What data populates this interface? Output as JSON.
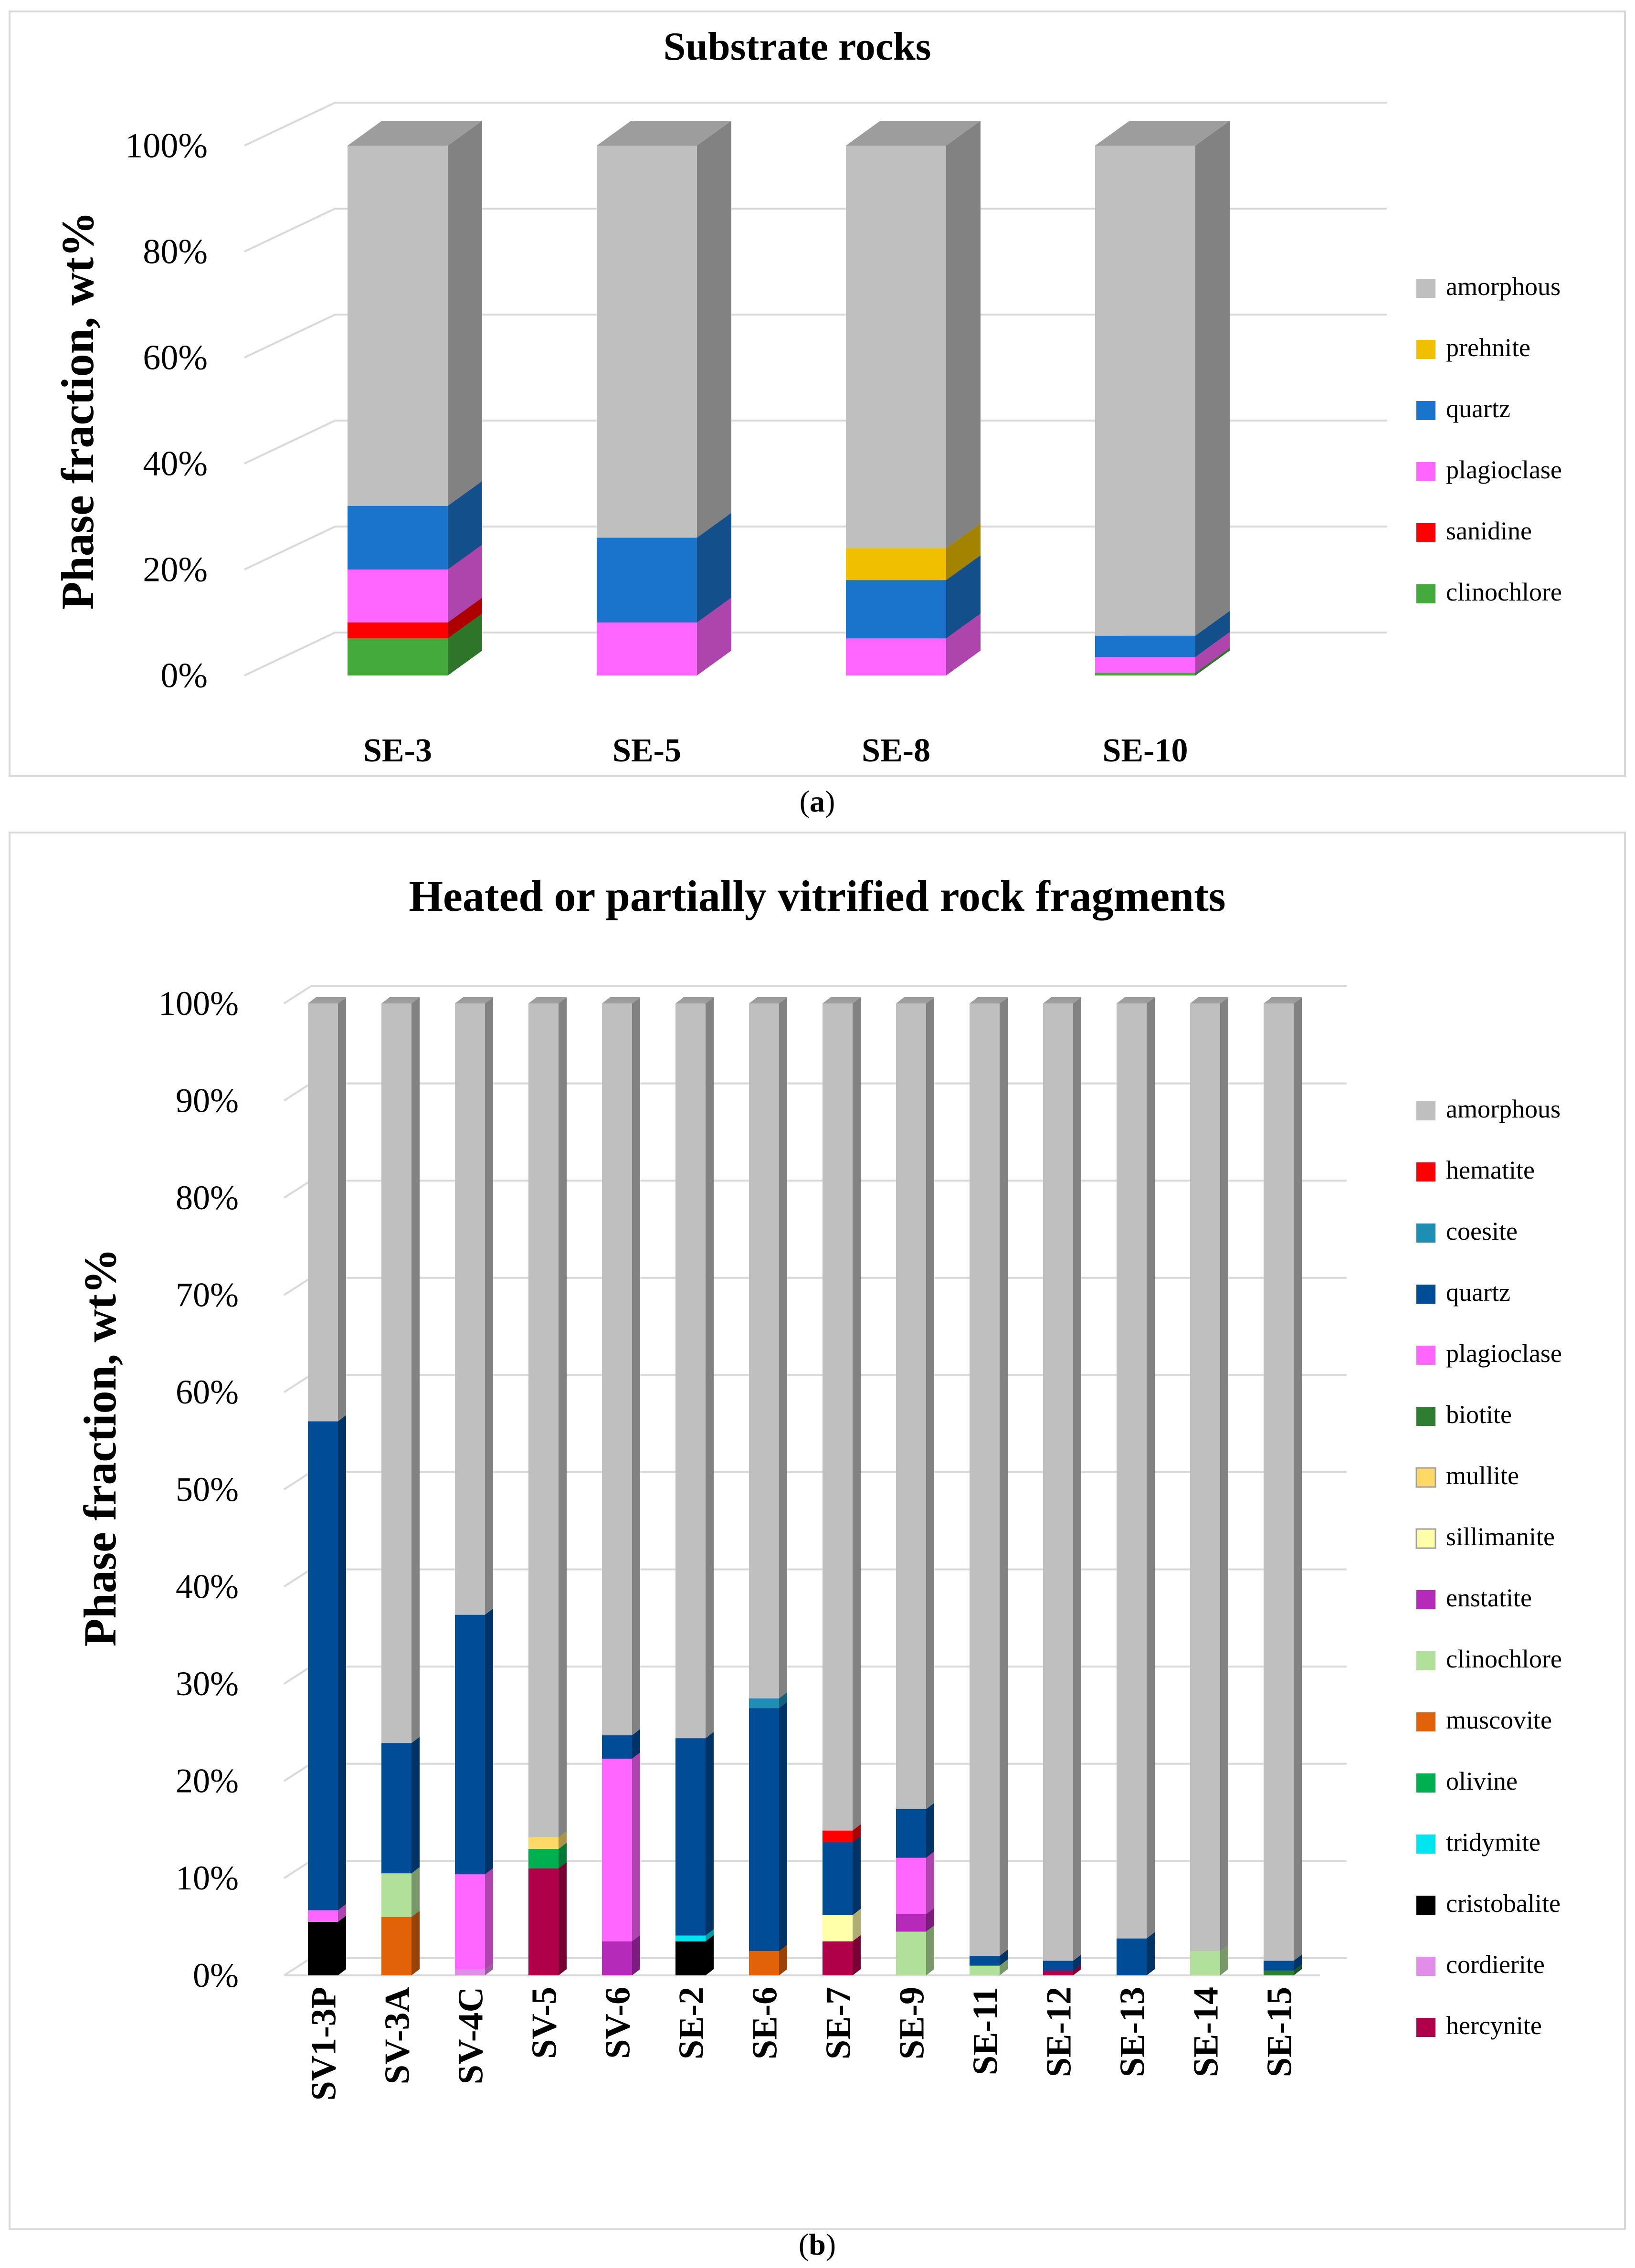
{
  "chart_data": [
    {
      "type": "bar",
      "stacked": true,
      "style": "3d-stacked-column-100",
      "title": "Substrate rocks",
      "ylabel": "Phase fraction, wt%",
      "xlabel": "",
      "ylim": [
        0,
        100
      ],
      "y_ticks": [
        0,
        20,
        40,
        60,
        80,
        100
      ],
      "y_tick_labels": [
        "0%",
        "20%",
        "40%",
        "60%",
        "80%",
        "100%"
      ],
      "categories": [
        "SE-3",
        "SE-5",
        "SE-8",
        "SE-10"
      ],
      "legend_position": "right",
      "caption": "(a)",
      "caption_letter": "a",
      "series": [
        {
          "name": "clinochlore",
          "color": "#44aa3c",
          "values": [
            7,
            0,
            0,
            0.5
          ]
        },
        {
          "name": "sanidine",
          "color": "#ff0000",
          "values": [
            3,
            0,
            0,
            0
          ]
        },
        {
          "name": "plagioclase",
          "color": "#ff66ff",
          "values": [
            10,
            10,
            7,
            3
          ]
        },
        {
          "name": "quartz",
          "color": "#1b74cc",
          "values": [
            12,
            16,
            11,
            4
          ]
        },
        {
          "name": "prehnite",
          "color": "#f0c000",
          "values": [
            0,
            0,
            6,
            0
          ]
        },
        {
          "name": "amorphous",
          "color": "#bfbfbf",
          "values": [
            68,
            74,
            76,
            92.5
          ]
        }
      ],
      "legend_order": [
        "amorphous",
        "prehnite",
        "quartz",
        "plagioclase",
        "sanidine",
        "clinochlore"
      ]
    },
    {
      "type": "bar",
      "stacked": true,
      "style": "3d-stacked-column-100",
      "title": "Heated or partially vitrified rock fragments",
      "ylabel": "Phase fraction, wt%",
      "xlabel": "",
      "ylim": [
        0,
        100
      ],
      "y_ticks": [
        0,
        10,
        20,
        30,
        40,
        50,
        60,
        70,
        80,
        90,
        100
      ],
      "y_tick_labels": [
        "0%",
        "10%",
        "20%",
        "30%",
        "40%",
        "50%",
        "60%",
        "70%",
        "80%",
        "90%",
        "100%"
      ],
      "categories": [
        "SV1-3P",
        "SV-3A",
        "SV-4C",
        "SV-5",
        "SV-6",
        "SE-2",
        "SE-6",
        "SE-7",
        "SE-9",
        "SE-11",
        "SE-12",
        "SE-13",
        "SE-14",
        "SE-15"
      ],
      "legend_position": "right",
      "caption": "(b)",
      "caption_letter": "b",
      "series": [
        {
          "name": "hercynite",
          "color": "#b0004a",
          "values": [
            0,
            0,
            0,
            11,
            0,
            0,
            0,
            3.5,
            0,
            0,
            0.5,
            0,
            0,
            0
          ]
        },
        {
          "name": "cordierite",
          "color": "#e08ee8",
          "values": [
            0,
            0,
            0.6,
            0,
            0,
            0,
            0,
            0,
            0,
            0,
            0,
            0,
            0,
            0
          ]
        },
        {
          "name": "cristobalite",
          "color": "#000000",
          "values": [
            5.5,
            0,
            0,
            0,
            0,
            3.5,
            0,
            0,
            0,
            0,
            0,
            0,
            0,
            0
          ]
        },
        {
          "name": "tridymite",
          "color": "#00e5f0",
          "values": [
            0,
            0,
            0,
            0,
            0,
            0.6,
            0,
            0,
            0,
            0,
            0,
            0,
            0,
            0
          ]
        },
        {
          "name": "olivine",
          "color": "#00b050",
          "values": [
            0,
            0,
            0,
            2,
            0,
            0,
            0,
            0,
            0,
            0,
            0,
            0,
            0,
            0
          ]
        },
        {
          "name": "muscovite",
          "color": "#e2620a",
          "values": [
            0,
            6,
            0,
            0,
            0,
            0,
            2.5,
            0,
            0,
            0,
            0,
            0,
            0,
            0
          ]
        },
        {
          "name": "clinochlore",
          "color": "#b0e09a",
          "values": [
            0,
            4.5,
            0,
            0,
            0,
            0,
            0,
            0,
            4.5,
            1,
            0,
            0,
            2.5,
            0
          ]
        },
        {
          "name": "enstatite",
          "color": "#b52ab8",
          "values": [
            0,
            0,
            0,
            0,
            3.5,
            0,
            0,
            0,
            1.8,
            0,
            0,
            0,
            0,
            0
          ]
        },
        {
          "name": "sillimanite",
          "color": "#ffffaa",
          "values": [
            0,
            0,
            0,
            0,
            0,
            0,
            0,
            2.7,
            0,
            0,
            0,
            0,
            0,
            0
          ]
        },
        {
          "name": "mullite",
          "color": "#ffd966",
          "values": [
            0,
            0,
            0,
            1.2,
            0,
            0,
            0,
            0,
            0,
            0,
            0,
            0,
            0,
            0
          ]
        },
        {
          "name": "biotite",
          "color": "#2e7d32",
          "values": [
            0,
            0,
            0,
            0,
            0,
            0,
            0,
            0,
            0,
            0,
            0,
            0,
            0,
            0.5
          ]
        },
        {
          "name": "plagioclase",
          "color": "#ff66ff",
          "values": [
            1.2,
            0,
            9.8,
            0,
            18.8,
            0,
            0,
            0,
            5.8,
            0,
            0,
            0,
            0,
            0
          ]
        },
        {
          "name": "quartz",
          "color": "#004c97",
          "values": [
            50.3,
            13.4,
            26.7,
            0,
            2.4,
            20.3,
            25,
            7.5,
            5,
            1,
            1,
            3.8,
            0,
            1
          ]
        },
        {
          "name": "coesite",
          "color": "#1f8eb5",
          "values": [
            0,
            0,
            0,
            0,
            0,
            0,
            1,
            0,
            0,
            0,
            0,
            0,
            0,
            0
          ]
        },
        {
          "name": "hematite",
          "color": "#ff0000",
          "values": [
            0,
            0,
            0,
            0,
            0,
            0,
            0,
            1.2,
            0,
            0,
            0,
            0,
            0,
            0
          ]
        },
        {
          "name": "amorphous",
          "color": "#bfbfbf",
          "values": [
            43,
            76.1,
            62.9,
            85.8,
            75.3,
            75.6,
            71.5,
            85.1,
            82.9,
            98,
            98.5,
            96.2,
            97.5,
            98.5
          ]
        }
      ],
      "legend_order": [
        "amorphous",
        "hematite",
        "coesite",
        "quartz",
        "plagioclase",
        "biotite",
        "mullite",
        "sillimanite",
        "enstatite",
        "clinochlore",
        "muscovite",
        "olivine",
        "tridymite",
        "cristobalite",
        "cordierite",
        "hercynite"
      ]
    }
  ]
}
